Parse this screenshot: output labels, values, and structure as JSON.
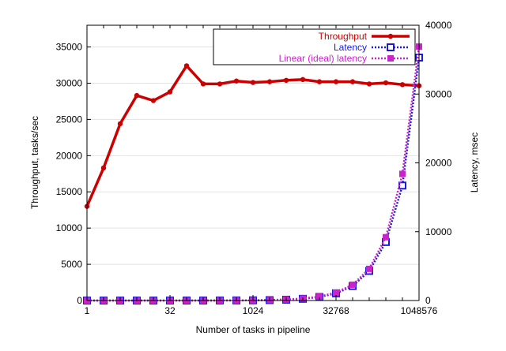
{
  "chart_data": {
    "type": "line",
    "xlabel": "Number of tasks in pipeline",
    "ylabel": "Throughput, tasks/sec",
    "y2label": "Latency, msec",
    "x_scale": "log2",
    "x": [
      1,
      2,
      4,
      8,
      16,
      32,
      64,
      128,
      256,
      512,
      1024,
      2048,
      4096,
      8192,
      16384,
      32768,
      65536,
      131072,
      262144,
      524288,
      1048576
    ],
    "xticks": [
      1,
      32,
      1024,
      32768,
      1048576
    ],
    "xtick_labels": [
      "1",
      "32",
      "1024",
      "32768",
      "1048576"
    ],
    "xlim": [
      1,
      1048576
    ],
    "ylim": [
      0,
      38000
    ],
    "yticks": [
      0,
      5000,
      10000,
      15000,
      20000,
      25000,
      30000,
      35000
    ],
    "ytick_labels": [
      "0",
      "5000",
      "10000",
      "15000",
      "20000",
      "25000",
      "30000",
      "35000"
    ],
    "y2lim": [
      0,
      40000
    ],
    "y2ticks": [
      0,
      10000,
      20000,
      30000,
      40000
    ],
    "y2tick_labels": [
      "0",
      "10000",
      "20000",
      "30000",
      "40000"
    ],
    "grid": "horizontal",
    "legend_position": "top-right",
    "series": [
      {
        "name": "Throughput",
        "axis": "left",
        "color": "#cc0000",
        "marker": "circle",
        "style": "solid",
        "values": [
          13000,
          18300,
          24400,
          28300,
          27600,
          28800,
          32400,
          29900,
          29900,
          30300,
          30100,
          30200,
          30400,
          30500,
          30200,
          30200,
          30200,
          29900,
          30050,
          29800,
          29650
        ]
      },
      {
        "name": "Latency",
        "axis": "right",
        "color": "#1a1adb",
        "marker": "open-square",
        "style": "dotted",
        "values": [
          0,
          0,
          0,
          0,
          0,
          0,
          1,
          3,
          7,
          15,
          30,
          60,
          120,
          250,
          520,
          1050,
          2100,
          4300,
          8500,
          16700,
          35300
        ]
      },
      {
        "name": "Linear (ideal) latency",
        "axis": "right",
        "color": "#cc22cc",
        "marker": "filled-square",
        "style": "dotted",
        "values": [
          0.04,
          0.07,
          0.14,
          0.28,
          0.56,
          1.1,
          2.3,
          4.5,
          9,
          18,
          36,
          72,
          144,
          288,
          576,
          1150,
          2300,
          4600,
          9200,
          18400,
          36900
        ]
      }
    ]
  }
}
